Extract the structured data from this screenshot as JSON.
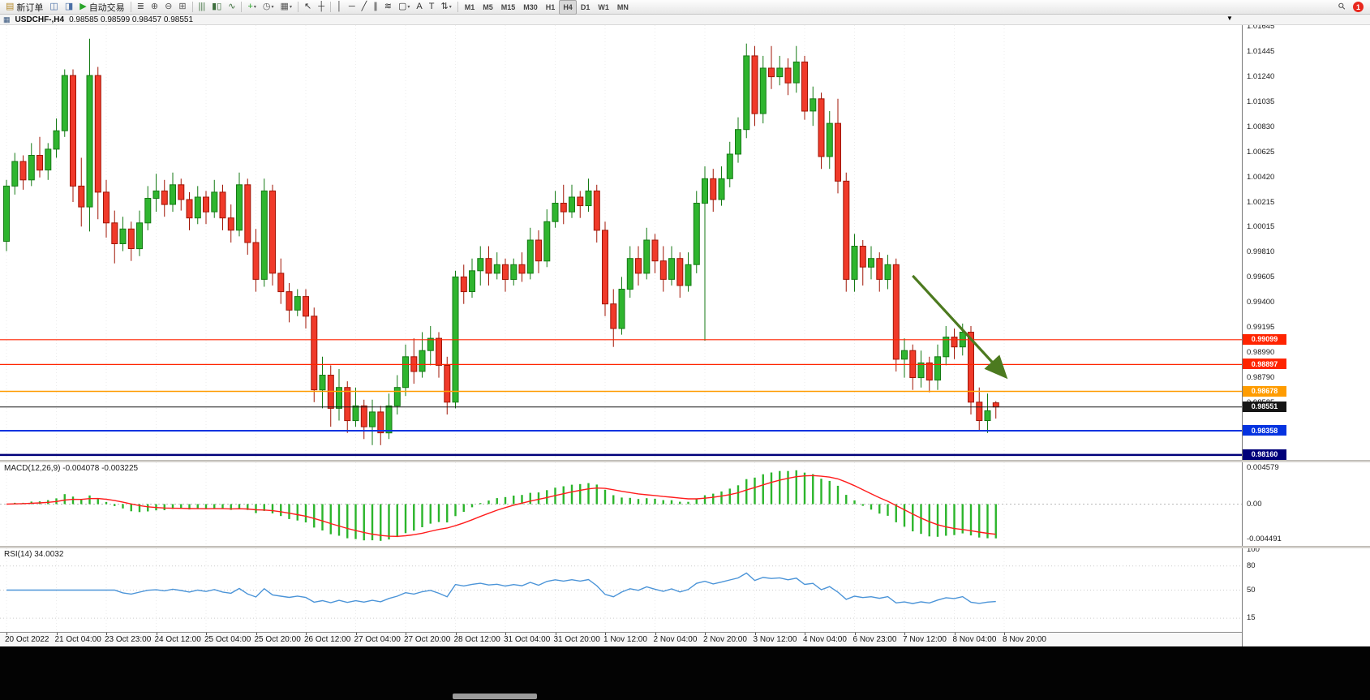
{
  "toolbar": {
    "notification_count": "1",
    "icons": {
      "search": "⚲",
      "caret": "▾"
    },
    "timeframes": {
      "items": [
        "M1",
        "M5",
        "M15",
        "M30",
        "H1",
        "H4",
        "D1",
        "W1",
        "MN"
      ],
      "active": "H4"
    },
    "groups": [
      [
        {
          "name": "new-order-button",
          "glyph": "▤",
          "color": "#b58a2a",
          "label": "新订单"
        },
        {
          "name": "charts-button",
          "glyph": "◫",
          "color": "#4a6fa5"
        },
        {
          "name": "data-window-button",
          "glyph": "◨",
          "color": "#4a6fa5"
        },
        {
          "name": "auto-trading-button",
          "glyph": "▶",
          "color": "#28a428",
          "label": "自动交易"
        }
      ],
      [
        {
          "name": "indicators-list-button",
          "glyph": "≣",
          "color": "#555555"
        },
        {
          "name": "zoom-in-button",
          "glyph": "⊕",
          "color": "#555555"
        },
        {
          "name": "zoom-out-button",
          "glyph": "⊖",
          "color": "#555555"
        },
        {
          "name": "tile-windows-button",
          "glyph": "⊞",
          "color": "#555555"
        }
      ],
      [
        {
          "name": "bar-chart-button",
          "glyph": "|||",
          "color": "#3c6e3c"
        },
        {
          "name": "candlestick-chart-button",
          "glyph": "▮▯",
          "color": "#3c6e3c"
        },
        {
          "name": "line-chart-button",
          "glyph": "∿",
          "color": "#3c6e3c"
        }
      ],
      [
        {
          "name": "add-indicator-button",
          "glyph": "+",
          "color": "#28a428",
          "caret": true
        },
        {
          "name": "periods-button",
          "glyph": "◷",
          "color": "#555555",
          "caret": true
        },
        {
          "name": "templates-button",
          "glyph": "▦",
          "color": "#555555",
          "caret": true
        }
      ],
      [
        {
          "name": "cursor-button",
          "glyph": "↖",
          "color": "#333333"
        },
        {
          "name": "crosshair-button",
          "glyph": "┼",
          "color": "#333333"
        }
      ],
      [
        {
          "name": "vertical-line-button",
          "glyph": "│",
          "color": "#333333"
        },
        {
          "name": "horizontal-line-button",
          "glyph": "─",
          "color": "#333333"
        },
        {
          "name": "trendline-button",
          "glyph": "╱",
          "color": "#333333"
        },
        {
          "name": "equidistant-channel-button",
          "glyph": "∥",
          "color": "#333333"
        },
        {
          "name": "fibonacci-button",
          "glyph": "≋",
          "color": "#333333"
        },
        {
          "name": "shapes-button",
          "glyph": "▢",
          "color": "#333333",
          "caret": true
        },
        {
          "name": "text-button",
          "glyph": "A",
          "color": "#333333"
        },
        {
          "name": "text-label-button",
          "glyph": "T",
          "color": "#333333"
        },
        {
          "name": "arrows-button",
          "glyph": "⇅",
          "color": "#333333",
          "caret": true
        }
      ]
    ]
  },
  "macd": {
    "label": "MACD(12,26,9)",
    "values_text": "-0.004078 -0.003225",
    "axis_labels": [
      "0.004579",
      "0.00",
      "-0.004491"
    ],
    "axis_values": [
      0.004579,
      0,
      -0.004491
    ],
    "scale": {
      "top": 0.0053,
      "bottom": -0.0053
    }
  },
  "rsi": {
    "label": "RSI(14)",
    "value_text": "34.0032",
    "levels": [
      80,
      50,
      15
    ],
    "axis_labels": [
      "100",
      "80",
      "50",
      "15"
    ],
    "axis_values": [
      100,
      80,
      50,
      15
    ]
  },
  "chart_data": {
    "type": "candlestick",
    "symbol": "USDCHF-",
    "timeframe": "H4",
    "title": "USDCHF-,H4",
    "ohlc_text": "0.98585 0.98599 0.98457 0.98551",
    "ohlc_current": {
      "open": 0.98585,
      "high": 0.98599,
      "low": 0.98457,
      "close": 0.98551
    },
    "icons": {
      "title_icon": "▦",
      "shift_marker": "▼"
    },
    "scale": {
      "top": 1.0166,
      "bottom": 0.9812
    },
    "colors": {
      "up": "#2fb52f",
      "up_border": "#147a14",
      "down": "#f03a2a",
      "down_border": "#a01505",
      "macd": "#2bb52b",
      "signal": "#ff1c1c",
      "rsi_line": "#4b94d8"
    },
    "price_axis": [
      "1.01645",
      "1.01445",
      "1.01240",
      "1.01035",
      "1.00830",
      "1.00625",
      "1.00420",
      "1.00215",
      "1.00015",
      "0.99810",
      "0.99605",
      "0.99400",
      "0.99195",
      "0.98990",
      "0.98790",
      "0.98585"
    ],
    "horizontal_lines": [
      {
        "price": 0.99099,
        "label": "0.99099",
        "color": "#ff2400",
        "width": 1.2
      },
      {
        "price": 0.98897,
        "label": "0.98897",
        "color": "#ff2400",
        "width": 1.2
      },
      {
        "price": 0.98678,
        "label": "0.98678",
        "color": "#ff9c00",
        "width": 1.5
      },
      {
        "price": 0.98551,
        "label": "0.98551",
        "color": "#151515",
        "width": 1
      },
      {
        "price": 0.98358,
        "label": "0.98358",
        "color": "#0533e0",
        "width": 2
      },
      {
        "price": 0.9816,
        "label": "0.98160",
        "color": "#00007a",
        "width": 2.5
      }
    ],
    "annotation": {
      "type": "arrow",
      "color": "#4c7a1f",
      "from_index": 109,
      "from_price": 0.9962,
      "to_index": 120,
      "to_price": 0.9881
    },
    "time_axis": [
      "20 Oct 2022",
      "21 Oct 04:00",
      "23 Oct 23:00",
      "24 Oct 12:00",
      "25 Oct 04:00",
      "25 Oct 20:00",
      "26 Oct 12:00",
      "27 Oct 04:00",
      "27 Oct 20:00",
      "28 Oct 12:00",
      "31 Oct 04:00",
      "31 Oct 20:00",
      "1 Nov 12:00",
      "2 Nov 04:00",
      "2 Nov 20:00",
      "3 Nov 12:00",
      "4 Nov 04:00",
      "6 Nov 23:00",
      "7 Nov 12:00",
      "8 Nov 04:00",
      "8 Nov 20:00"
    ],
    "candles": [
      [
        0.999,
        1.004,
        0.9982,
        1.0035
      ],
      [
        1.0035,
        1.0062,
        1.0028,
        1.0055
      ],
      [
        1.0055,
        1.006,
        1.0032,
        1.004
      ],
      [
        1.004,
        1.007,
        1.0035,
        1.006
      ],
      [
        1.006,
        1.0075,
        1.0042,
        1.0048
      ],
      [
        1.0048,
        1.007,
        1.004,
        1.0065
      ],
      [
        1.0065,
        1.009,
        1.0058,
        1.008
      ],
      [
        1.008,
        1.013,
        1.0075,
        1.0125
      ],
      [
        1.0125,
        1.013,
        1.0022,
        1.0035
      ],
      [
        1.0035,
        1.0058,
        1.0002,
        1.0018
      ],
      [
        1.0018,
        1.0155,
        0.9998,
        1.0125
      ],
      [
        1.0125,
        1.0132,
        1.0008,
        1.003
      ],
      [
        1.003,
        1.004,
        0.9993,
        1.0005
      ],
      [
        1.0005,
        1.0015,
        0.9972,
        0.9988
      ],
      [
        0.9988,
        1.001,
        0.9982,
        1.0
      ],
      [
        1.0,
        1.0006,
        0.9974,
        0.9984
      ],
      [
        0.9984,
        1.0015,
        0.9978,
        1.0005
      ],
      [
        1.0005,
        1.0035,
        0.9999,
        1.0025
      ],
      [
        1.0025,
        1.0045,
        1.0014,
        1.0031
      ],
      [
        1.0031,
        1.004,
        1.001,
        1.002
      ],
      [
        1.002,
        1.0046,
        1.0014,
        1.0036
      ],
      [
        1.0036,
        1.0041,
        1.0015,
        1.0024
      ],
      [
        1.0024,
        1.003,
        0.9999,
        1.0009
      ],
      [
        1.0009,
        1.0035,
        1.0004,
        1.0026
      ],
      [
        1.0026,
        1.0031,
        1.0004,
        1.0014
      ],
      [
        1.0014,
        1.004,
        1.0009,
        1.003
      ],
      [
        1.003,
        1.0036,
        0.9999,
        1.0009
      ],
      [
        1.0009,
        1.002,
        0.9989,
        0.9999
      ],
      [
        0.9999,
        1.0046,
        0.9994,
        1.0036
      ],
      [
        1.0036,
        1.0041,
        0.9979,
        0.9989
      ],
      [
        0.9989,
        1.0,
        0.9949,
        0.9959
      ],
      [
        0.9959,
        1.0041,
        0.9953,
        1.0031
      ],
      [
        1.0031,
        1.0036,
        0.9954,
        0.9964
      ],
      [
        0.9964,
        0.9976,
        0.9939,
        0.9949
      ],
      [
        0.9949,
        0.9956,
        0.9924,
        0.9934
      ],
      [
        0.9934,
        0.9951,
        0.9929,
        0.9945
      ],
      [
        0.9945,
        0.9951,
        0.9919,
        0.9929
      ],
      [
        0.9929,
        0.9936,
        0.9859,
        0.9869
      ],
      [
        0.9869,
        0.9896,
        0.9854,
        0.9881
      ],
      [
        0.9881,
        0.9889,
        0.9839,
        0.9854
      ],
      [
        0.9854,
        0.9886,
        0.9844,
        0.9871
      ],
      [
        0.9871,
        0.9876,
        0.9834,
        0.9844
      ],
      [
        0.9844,
        0.9871,
        0.9839,
        0.9856
      ],
      [
        0.9856,
        0.9861,
        0.9829,
        0.9839
      ],
      [
        0.9839,
        0.9861,
        0.9824,
        0.9851
      ],
      [
        0.9851,
        0.9856,
        0.9824,
        0.9834
      ],
      [
        0.9834,
        0.9866,
        0.9829,
        0.9856
      ],
      [
        0.9856,
        0.9881,
        0.9849,
        0.9871
      ],
      [
        0.9871,
        0.9906,
        0.9864,
        0.9896
      ],
      [
        0.9896,
        0.9911,
        0.9874,
        0.9884
      ],
      [
        0.9884,
        0.9916,
        0.9879,
        0.9901
      ],
      [
        0.9901,
        0.9921,
        0.9889,
        0.9911
      ],
      [
        0.9911,
        0.9916,
        0.9879,
        0.9889
      ],
      [
        0.9889,
        0.9896,
        0.9849,
        0.9859
      ],
      [
        0.9859,
        0.9966,
        0.9854,
        0.9961
      ],
      [
        0.9961,
        0.9971,
        0.9939,
        0.9949
      ],
      [
        0.9949,
        0.9976,
        0.9944,
        0.9966
      ],
      [
        0.9966,
        0.9986,
        0.9954,
        0.9976
      ],
      [
        0.9976,
        0.9986,
        0.9954,
        0.9964
      ],
      [
        0.9964,
        0.9981,
        0.9959,
        0.9971
      ],
      [
        0.9971,
        0.9976,
        0.9949,
        0.9959
      ],
      [
        0.9959,
        0.9976,
        0.9954,
        0.9971
      ],
      [
        0.9971,
        0.9981,
        0.9957,
        0.9964
      ],
      [
        0.9964,
        1.0001,
        0.9959,
        0.9991
      ],
      [
        0.9991,
        0.9999,
        0.9964,
        0.9974
      ],
      [
        0.9974,
        1.0016,
        0.9969,
        1.0006
      ],
      [
        1.0006,
        1.0031,
        1.0001,
        1.0021
      ],
      [
        1.0021,
        1.0036,
        1.0004,
        1.0014
      ],
      [
        1.0014,
        1.0036,
        1.0009,
        1.0026
      ],
      [
        1.0026,
        1.0031,
        1.0009,
        1.0019
      ],
      [
        1.0019,
        1.0041,
        1.0014,
        1.0031
      ],
      [
        1.0031,
        1.0036,
        0.9989,
        0.9999
      ],
      [
        0.9999,
        1.0006,
        0.9929,
        0.9939
      ],
      [
        0.9939,
        0.9951,
        0.9904,
        0.9919
      ],
      [
        0.9919,
        0.9961,
        0.9914,
        0.9951
      ],
      [
        0.9951,
        0.9986,
        0.9944,
        0.9976
      ],
      [
        0.9976,
        0.9986,
        0.9954,
        0.9964
      ],
      [
        0.9964,
        1.0001,
        0.9959,
        0.9991
      ],
      [
        0.9991,
        0.9996,
        0.9964,
        0.9974
      ],
      [
        0.9974,
        0.9986,
        0.9949,
        0.9959
      ],
      [
        0.9959,
        0.9986,
        0.9954,
        0.9976
      ],
      [
        0.9976,
        0.9981,
        0.9944,
        0.9954
      ],
      [
        0.9954,
        0.9981,
        0.9949,
        0.9971
      ],
      [
        0.9971,
        1.0031,
        0.9964,
        1.0021
      ],
      [
        1.0021,
        1.0051,
        0.9909,
        1.0041
      ],
      [
        1.0041,
        1.0049,
        1.0014,
        1.0024
      ],
      [
        1.0024,
        1.0051,
        1.0019,
        1.0041
      ],
      [
        1.0041,
        1.0071,
        1.0034,
        1.0061
      ],
      [
        1.0061,
        1.0091,
        1.0054,
        1.0081
      ],
      [
        1.0081,
        1.0151,
        1.0074,
        1.0141
      ],
      [
        1.0141,
        1.0149,
        1.0084,
        1.0094
      ],
      [
        1.0094,
        1.0141,
        1.0086,
        1.0131
      ],
      [
        1.0131,
        1.0149,
        1.0114,
        1.0124
      ],
      [
        1.0124,
        1.0141,
        1.0117,
        1.0131
      ],
      [
        1.0131,
        1.0139,
        1.0109,
        1.0119
      ],
      [
        1.0119,
        1.0149,
        1.0111,
        1.0136
      ],
      [
        1.0136,
        1.0141,
        1.0089,
        1.0096
      ],
      [
        1.0096,
        1.0116,
        1.0084,
        1.0106
      ],
      [
        1.0106,
        1.0111,
        1.0049,
        1.0059
      ],
      [
        1.0059,
        1.0096,
        1.0049,
        1.0086
      ],
      [
        1.0086,
        1.0106,
        1.0029,
        1.0039
      ],
      [
        1.0039,
        1.0046,
        0.9949,
        0.9959
      ],
      [
        0.9959,
        0.9996,
        0.9949,
        0.9986
      ],
      [
        0.9986,
        0.9991,
        0.9954,
        0.9969
      ],
      [
        0.9969,
        0.9986,
        0.9959,
        0.9976
      ],
      [
        0.9976,
        0.9981,
        0.9949,
        0.9959
      ],
      [
        0.9959,
        0.9979,
        0.9951,
        0.9971
      ],
      [
        0.9971,
        0.9976,
        0.9884,
        0.9894
      ],
      [
        0.9894,
        0.9911,
        0.9879,
        0.9901
      ],
      [
        0.9901,
        0.9906,
        0.9869,
        0.9879
      ],
      [
        0.9879,
        0.9901,
        0.9871,
        0.9891
      ],
      [
        0.9891,
        0.9896,
        0.9867,
        0.9877
      ],
      [
        0.9877,
        0.9906,
        0.9869,
        0.9896
      ],
      [
        0.9896,
        0.9921,
        0.9889,
        0.9912
      ],
      [
        0.9912,
        0.9919,
        0.9894,
        0.9904
      ],
      [
        0.9904,
        0.9923,
        0.9897,
        0.9916
      ],
      [
        0.9916,
        0.9921,
        0.9849,
        0.9859
      ],
      [
        0.9859,
        0.9871,
        0.9836,
        0.9844
      ],
      [
        0.9844,
        0.9866,
        0.9834,
        0.9852
      ],
      [
        0.98585,
        0.98599,
        0.98457,
        0.98551
      ]
    ]
  }
}
